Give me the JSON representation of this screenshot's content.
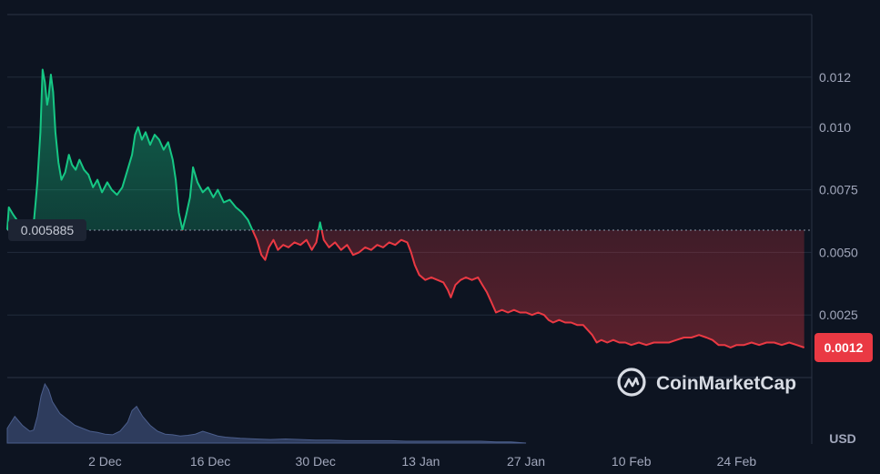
{
  "chart_data": {
    "type": "area",
    "currency_label": "USD",
    "baseline_value": 0.005885,
    "baseline_label": "0.005885",
    "current_value": 0.0012,
    "current_label": "0.0012",
    "watermark": "CoinMarketCap",
    "ylim": [
      0,
      0.0145
    ],
    "x_domain_days": [
      -13,
      94
    ],
    "y_ticks": [
      {
        "value": 0.0025,
        "label": "0.0025"
      },
      {
        "value": 0.005,
        "label": "0.0050"
      },
      {
        "value": 0.0075,
        "label": "0.0075"
      },
      {
        "value": 0.01,
        "label": "0.010"
      },
      {
        "value": 0.012,
        "label": "0.012"
      }
    ],
    "x_ticks": [
      {
        "day": 0,
        "label": "2 Dec"
      },
      {
        "day": 14,
        "label": "16 Dec"
      },
      {
        "day": 28,
        "label": "30 Dec"
      },
      {
        "day": 42,
        "label": "13 Jan"
      },
      {
        "day": 56,
        "label": "27 Jan"
      },
      {
        "day": 70,
        "label": "10 Feb"
      },
      {
        "day": 84,
        "label": "24 Feb"
      }
    ],
    "price_series": {
      "name": "Price",
      "up_color": "#16c784",
      "down_color": "#ea3943",
      "points": [
        [
          -13,
          0.0059
        ],
        [
          -12.8,
          0.0068
        ],
        [
          -12.2,
          0.0065
        ],
        [
          -11.5,
          0.0062
        ],
        [
          -10.5,
          0.006
        ],
        [
          -9.5,
          0.0061
        ],
        [
          -9.2,
          0.0071
        ],
        [
          -9.0,
          0.0078
        ],
        [
          -8.6,
          0.0098
        ],
        [
          -8.3,
          0.0123
        ],
        [
          -8.0,
          0.0118
        ],
        [
          -7.7,
          0.0109
        ],
        [
          -7.5,
          0.0112
        ],
        [
          -7.2,
          0.0121
        ],
        [
          -6.9,
          0.0114
        ],
        [
          -6.6,
          0.0098
        ],
        [
          -6.2,
          0.0086
        ],
        [
          -5.8,
          0.0079
        ],
        [
          -5.3,
          0.0082
        ],
        [
          -4.8,
          0.0089
        ],
        [
          -4.4,
          0.0085
        ],
        [
          -3.9,
          0.0083
        ],
        [
          -3.4,
          0.0087
        ],
        [
          -2.8,
          0.0083
        ],
        [
          -2.2,
          0.0081
        ],
        [
          -1.6,
          0.0076
        ],
        [
          -1.0,
          0.0079
        ],
        [
          -0.4,
          0.0074
        ],
        [
          0.3,
          0.0078
        ],
        [
          0.9,
          0.0075
        ],
        [
          1.6,
          0.0073
        ],
        [
          2.3,
          0.0076
        ],
        [
          3.0,
          0.0083
        ],
        [
          3.6,
          0.0089
        ],
        [
          4.0,
          0.0097
        ],
        [
          4.4,
          0.01
        ],
        [
          4.9,
          0.0095
        ],
        [
          5.4,
          0.0098
        ],
        [
          6.0,
          0.0093
        ],
        [
          6.6,
          0.0097
        ],
        [
          7.2,
          0.0095
        ],
        [
          7.8,
          0.0091
        ],
        [
          8.4,
          0.0094
        ],
        [
          9.0,
          0.0087
        ],
        [
          9.4,
          0.0079
        ],
        [
          9.8,
          0.0066
        ],
        [
          10.3,
          0.0059
        ],
        [
          10.8,
          0.0065
        ],
        [
          11.3,
          0.0072
        ],
        [
          11.7,
          0.0084
        ],
        [
          12.3,
          0.0078
        ],
        [
          13.0,
          0.0074
        ],
        [
          13.7,
          0.0076
        ],
        [
          14.4,
          0.0072
        ],
        [
          15.0,
          0.0075
        ],
        [
          15.8,
          0.007
        ],
        [
          16.6,
          0.0071
        ],
        [
          17.4,
          0.0068
        ],
        [
          18.2,
          0.0066
        ],
        [
          19.0,
          0.0063
        ],
        [
          19.6,
          0.0059
        ],
        [
          20.2,
          0.0055
        ],
        [
          20.8,
          0.0049
        ],
        [
          21.3,
          0.0047
        ],
        [
          21.8,
          0.0052
        ],
        [
          22.4,
          0.0055
        ],
        [
          23.0,
          0.0051
        ],
        [
          23.7,
          0.0053
        ],
        [
          24.4,
          0.0052
        ],
        [
          25.2,
          0.0054
        ],
        [
          26.0,
          0.0053
        ],
        [
          26.8,
          0.0055
        ],
        [
          27.5,
          0.0051
        ],
        [
          28.1,
          0.0054
        ],
        [
          28.6,
          0.0062
        ],
        [
          29.1,
          0.0055
        ],
        [
          29.8,
          0.0052
        ],
        [
          30.6,
          0.0054
        ],
        [
          31.4,
          0.0051
        ],
        [
          32.2,
          0.0053
        ],
        [
          33.0,
          0.0049
        ],
        [
          33.8,
          0.005
        ],
        [
          34.6,
          0.0052
        ],
        [
          35.4,
          0.0051
        ],
        [
          36.2,
          0.0053
        ],
        [
          37.0,
          0.0052
        ],
        [
          37.8,
          0.0054
        ],
        [
          38.6,
          0.0053
        ],
        [
          39.4,
          0.0055
        ],
        [
          40.2,
          0.0054
        ],
        [
          40.7,
          0.005
        ],
        [
          41.2,
          0.0045
        ],
        [
          41.8,
          0.0041
        ],
        [
          42.6,
          0.0039
        ],
        [
          43.4,
          0.004
        ],
        [
          44.2,
          0.0039
        ],
        [
          45.0,
          0.0038
        ],
        [
          45.6,
          0.0035
        ],
        [
          46.0,
          0.0032
        ],
        [
          46.6,
          0.0037
        ],
        [
          47.3,
          0.0039
        ],
        [
          48.0,
          0.004
        ],
        [
          48.8,
          0.0039
        ],
        [
          49.6,
          0.004
        ],
        [
          50.2,
          0.0037
        ],
        [
          50.8,
          0.0034
        ],
        [
          51.4,
          0.003
        ],
        [
          52.0,
          0.0026
        ],
        [
          52.8,
          0.0027
        ],
        [
          53.6,
          0.0026
        ],
        [
          54.4,
          0.0027
        ],
        [
          55.2,
          0.0026
        ],
        [
          56.0,
          0.0026
        ],
        [
          56.8,
          0.0025
        ],
        [
          57.6,
          0.0026
        ],
        [
          58.4,
          0.0025
        ],
        [
          59.0,
          0.0023
        ],
        [
          59.6,
          0.0022
        ],
        [
          60.4,
          0.0023
        ],
        [
          61.2,
          0.0022
        ],
        [
          62.0,
          0.0022
        ],
        [
          62.8,
          0.0021
        ],
        [
          63.6,
          0.0021
        ],
        [
          64.2,
          0.0019
        ],
        [
          64.8,
          0.0017
        ],
        [
          65.4,
          0.0014
        ],
        [
          66.0,
          0.0015
        ],
        [
          66.8,
          0.0014
        ],
        [
          67.6,
          0.0015
        ],
        [
          68.4,
          0.0014
        ],
        [
          69.2,
          0.0014
        ],
        [
          70.0,
          0.0013
        ],
        [
          71.0,
          0.0014
        ],
        [
          72.0,
          0.0013
        ],
        [
          73.0,
          0.0014
        ],
        [
          74.0,
          0.0014
        ],
        [
          75.0,
          0.0014
        ],
        [
          76.0,
          0.0015
        ],
        [
          77.0,
          0.0016
        ],
        [
          78.0,
          0.0016
        ],
        [
          79.0,
          0.0017
        ],
        [
          80.0,
          0.0016
        ],
        [
          80.8,
          0.0015
        ],
        [
          81.6,
          0.0013
        ],
        [
          82.4,
          0.0013
        ],
        [
          83.2,
          0.0012
        ],
        [
          84.0,
          0.0013
        ],
        [
          85.0,
          0.0013
        ],
        [
          86.0,
          0.0014
        ],
        [
          87.0,
          0.0013
        ],
        [
          88.0,
          0.0014
        ],
        [
          89.0,
          0.0014
        ],
        [
          90.0,
          0.0013
        ],
        [
          91.0,
          0.0014
        ],
        [
          92.0,
          0.0013
        ],
        [
          93.0,
          0.0012
        ]
      ]
    },
    "volume_series": {
      "name": "Volume",
      "color": "#3a4a72",
      "relative_points": [
        [
          -13,
          0.25
        ],
        [
          -12,
          0.45
        ],
        [
          -11,
          0.3
        ],
        [
          -10,
          0.2
        ],
        [
          -9.5,
          0.22
        ],
        [
          -9,
          0.45
        ],
        [
          -8.5,
          0.8
        ],
        [
          -8,
          1.0
        ],
        [
          -7.5,
          0.9
        ],
        [
          -7,
          0.7
        ],
        [
          -6,
          0.5
        ],
        [
          -5,
          0.4
        ],
        [
          -4,
          0.3
        ],
        [
          -3,
          0.25
        ],
        [
          -2,
          0.2
        ],
        [
          -1,
          0.18
        ],
        [
          0,
          0.15
        ],
        [
          1,
          0.14
        ],
        [
          2,
          0.2
        ],
        [
          3,
          0.35
        ],
        [
          3.6,
          0.55
        ],
        [
          4.2,
          0.62
        ],
        [
          5,
          0.45
        ],
        [
          6,
          0.3
        ],
        [
          7,
          0.2
        ],
        [
          8,
          0.15
        ],
        [
          9,
          0.14
        ],
        [
          10,
          0.12
        ],
        [
          11,
          0.13
        ],
        [
          12,
          0.15
        ],
        [
          13,
          0.2
        ],
        [
          14,
          0.16
        ],
        [
          15,
          0.12
        ],
        [
          16,
          0.1
        ],
        [
          17,
          0.09
        ],
        [
          18,
          0.08
        ],
        [
          20,
          0.07
        ],
        [
          22,
          0.06
        ],
        [
          24,
          0.07
        ],
        [
          26,
          0.06
        ],
        [
          28,
          0.05
        ],
        [
          30,
          0.05
        ],
        [
          32,
          0.04
        ],
        [
          34,
          0.04
        ],
        [
          36,
          0.04
        ],
        [
          38,
          0.04
        ],
        [
          40,
          0.03
        ],
        [
          42,
          0.03
        ],
        [
          44,
          0.03
        ],
        [
          46,
          0.03
        ],
        [
          48,
          0.03
        ],
        [
          50,
          0.03
        ],
        [
          52,
          0.02
        ],
        [
          54,
          0.02
        ],
        [
          56,
          0.0
        ]
      ]
    }
  }
}
